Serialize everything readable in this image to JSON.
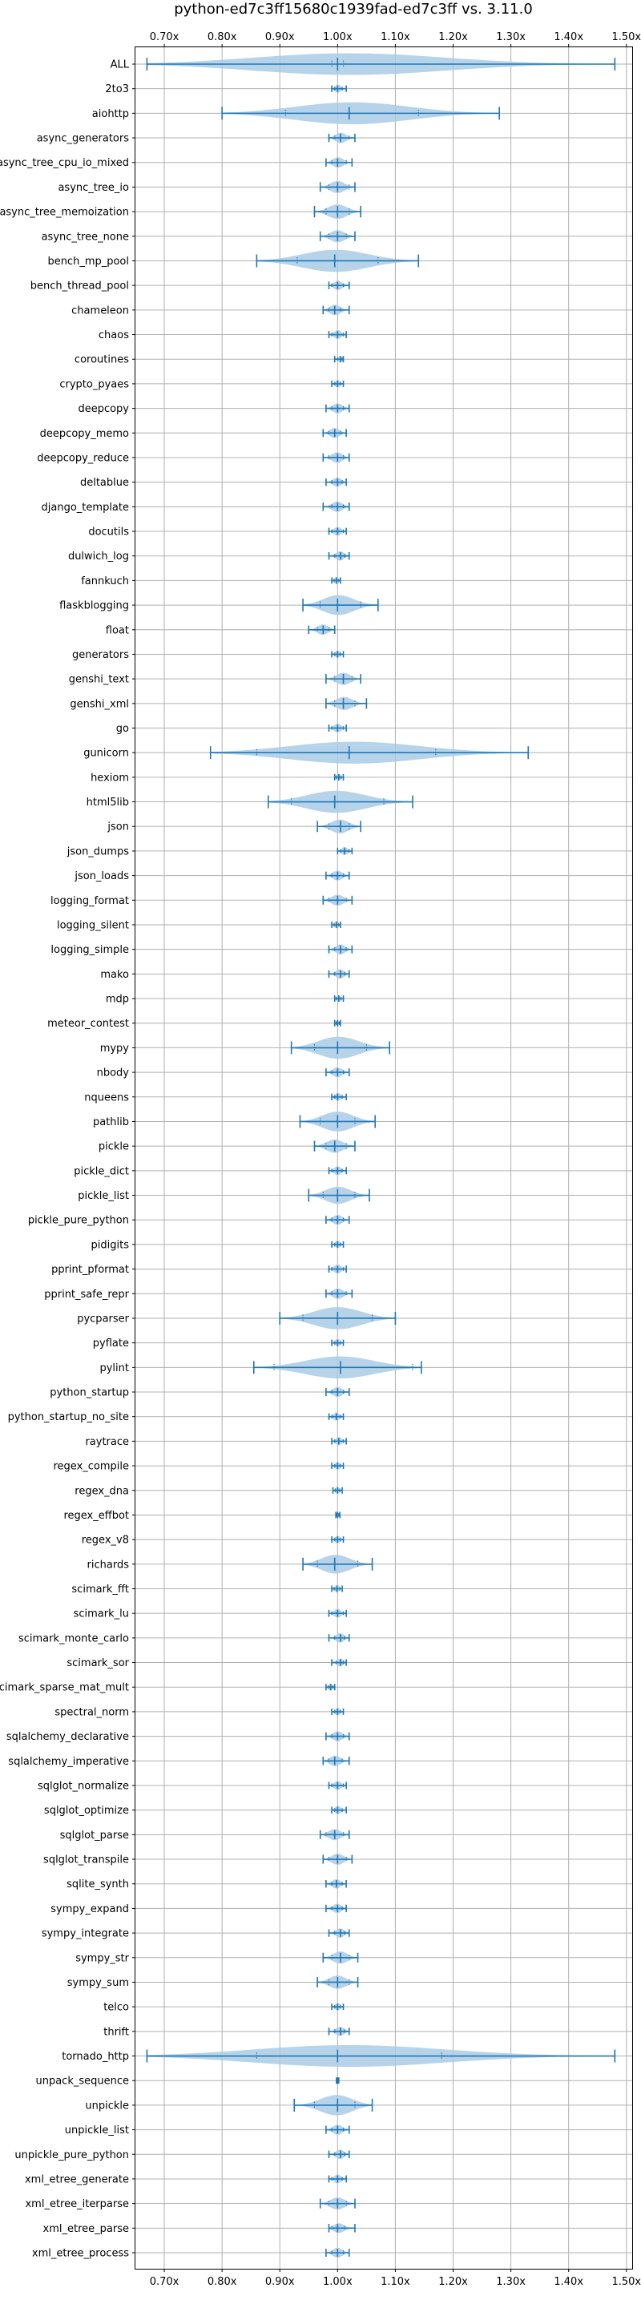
{
  "chart_data": {
    "type": "violin",
    "title": "python-ed7c3ff15680c1939fad-ed7c3ff vs. 3.11.0",
    "orientation": "horizontal",
    "xlim": [
      0.65,
      1.51
    ],
    "x_ticks": [
      0.7,
      0.8,
      0.9,
      1.0,
      1.1,
      1.2,
      1.3,
      1.4,
      1.5
    ],
    "x_tick_labels": [
      "0.70x",
      "0.80x",
      "0.90x",
      "1.00x",
      "1.10x",
      "1.20x",
      "1.30x",
      "1.40x",
      "1.50x"
    ],
    "tick_labels_top_and_bottom": true,
    "grid": true,
    "color": "#1f77b4",
    "fill_color": "#aacbe6",
    "benchmarks": [
      {
        "name": "ALL",
        "min": 0.67,
        "max": 1.48,
        "median": 1.0,
        "q1": 0.99,
        "q3": 1.01
      },
      {
        "name": "2to3",
        "min": 0.99,
        "max": 1.015,
        "median": 1.0,
        "q1": 0.995,
        "q3": 1.008
      },
      {
        "name": "aiohttp",
        "min": 0.8,
        "max": 1.28,
        "median": 1.02,
        "q1": 0.91,
        "q3": 1.14
      },
      {
        "name": "async_generators",
        "min": 0.985,
        "max": 1.03,
        "median": 1.005,
        "q1": 0.995,
        "q3": 1.02
      },
      {
        "name": "async_tree_cpu_io_mixed",
        "min": 0.98,
        "max": 1.025,
        "median": 1.0,
        "q1": 0.99,
        "q3": 1.015
      },
      {
        "name": "async_tree_io",
        "min": 0.97,
        "max": 1.03,
        "median": 1.0,
        "q1": 0.985,
        "q3": 1.02
      },
      {
        "name": "async_tree_memoization",
        "min": 0.96,
        "max": 1.04,
        "median": 1.0,
        "q1": 0.98,
        "q3": 1.02
      },
      {
        "name": "async_tree_none",
        "min": 0.97,
        "max": 1.03,
        "median": 1.0,
        "q1": 0.985,
        "q3": 1.015
      },
      {
        "name": "bench_mp_pool",
        "min": 0.86,
        "max": 1.14,
        "median": 0.995,
        "q1": 0.93,
        "q3": 1.07
      },
      {
        "name": "bench_thread_pool",
        "min": 0.985,
        "max": 1.02,
        "median": 1.0,
        "q1": 0.99,
        "q3": 1.01
      },
      {
        "name": "chameleon",
        "min": 0.975,
        "max": 1.02,
        "median": 0.995,
        "q1": 0.985,
        "q3": 1.005
      },
      {
        "name": "chaos",
        "min": 0.985,
        "max": 1.015,
        "median": 1.0,
        "q1": 0.99,
        "q3": 1.01
      },
      {
        "name": "coroutines",
        "min": 0.995,
        "max": 1.01,
        "median": 1.005,
        "q1": 1.0,
        "q3": 1.008
      },
      {
        "name": "crypto_pyaes",
        "min": 0.99,
        "max": 1.01,
        "median": 1.0,
        "q1": 0.995,
        "q3": 1.005
      },
      {
        "name": "deepcopy",
        "min": 0.98,
        "max": 1.02,
        "median": 1.0,
        "q1": 0.99,
        "q3": 1.01
      },
      {
        "name": "deepcopy_memo",
        "min": 0.975,
        "max": 1.015,
        "median": 0.995,
        "q1": 0.985,
        "q3": 1.005
      },
      {
        "name": "deepcopy_reduce",
        "min": 0.975,
        "max": 1.02,
        "median": 1.0,
        "q1": 0.985,
        "q3": 1.01
      },
      {
        "name": "deltablue",
        "min": 0.98,
        "max": 1.015,
        "median": 1.0,
        "q1": 0.99,
        "q3": 1.008
      },
      {
        "name": "django_template",
        "min": 0.975,
        "max": 1.02,
        "median": 1.0,
        "q1": 0.99,
        "q3": 1.01
      },
      {
        "name": "docutils",
        "min": 0.985,
        "max": 1.015,
        "median": 1.0,
        "q1": 0.99,
        "q3": 1.01
      },
      {
        "name": "dulwich_log",
        "min": 0.985,
        "max": 1.02,
        "median": 1.005,
        "q1": 0.995,
        "q3": 1.012
      },
      {
        "name": "fannkuch",
        "min": 0.99,
        "max": 1.005,
        "median": 0.998,
        "q1": 0.994,
        "q3": 1.002
      },
      {
        "name": "flaskblogging",
        "min": 0.94,
        "max": 1.07,
        "median": 1.0,
        "q1": 0.97,
        "q3": 1.04
      },
      {
        "name": "float",
        "min": 0.95,
        "max": 0.995,
        "median": 0.975,
        "q1": 0.965,
        "q3": 0.985
      },
      {
        "name": "generators",
        "min": 0.99,
        "max": 1.01,
        "median": 1.0,
        "q1": 0.995,
        "q3": 1.005
      },
      {
        "name": "genshi_text",
        "min": 0.98,
        "max": 1.04,
        "median": 1.01,
        "q1": 0.995,
        "q3": 1.025
      },
      {
        "name": "genshi_xml",
        "min": 0.98,
        "max": 1.05,
        "median": 1.01,
        "q1": 0.995,
        "q3": 1.03
      },
      {
        "name": "go",
        "min": 0.985,
        "max": 1.015,
        "median": 1.0,
        "q1": 0.99,
        "q3": 1.01
      },
      {
        "name": "gunicorn",
        "min": 0.78,
        "max": 1.33,
        "median": 1.02,
        "q1": 0.86,
        "q3": 1.17
      },
      {
        "name": "hexiom",
        "min": 0.995,
        "max": 1.01,
        "median": 1.002,
        "q1": 0.998,
        "q3": 1.006
      },
      {
        "name": "html5lib",
        "min": 0.88,
        "max": 1.13,
        "median": 0.995,
        "q1": 0.92,
        "q3": 1.08
      },
      {
        "name": "json",
        "min": 0.965,
        "max": 1.04,
        "median": 1.005,
        "q1": 0.985,
        "q3": 1.02
      },
      {
        "name": "json_dumps",
        "min": 1.0,
        "max": 1.025,
        "median": 1.012,
        "q1": 1.005,
        "q3": 1.02
      },
      {
        "name": "json_loads",
        "min": 0.98,
        "max": 1.02,
        "median": 1.0,
        "q1": 0.99,
        "q3": 1.01
      },
      {
        "name": "logging_format",
        "min": 0.975,
        "max": 1.025,
        "median": 1.0,
        "q1": 0.985,
        "q3": 1.015
      },
      {
        "name": "logging_silent",
        "min": 0.99,
        "max": 1.005,
        "median": 0.998,
        "q1": 0.994,
        "q3": 1.002
      },
      {
        "name": "logging_simple",
        "min": 0.985,
        "max": 1.025,
        "median": 1.005,
        "q1": 0.995,
        "q3": 1.015
      },
      {
        "name": "mako",
        "min": 0.985,
        "max": 1.02,
        "median": 1.005,
        "q1": 0.995,
        "q3": 1.012
      },
      {
        "name": "mdp",
        "min": 0.995,
        "max": 1.01,
        "median": 1.002,
        "q1": 0.998,
        "q3": 1.006
      },
      {
        "name": "meteor_contest",
        "min": 0.995,
        "max": 1.005,
        "median": 1.0,
        "q1": 0.998,
        "q3": 1.003
      },
      {
        "name": "mypy",
        "min": 0.92,
        "max": 1.09,
        "median": 1.0,
        "q1": 0.96,
        "q3": 1.05
      },
      {
        "name": "nbody",
        "min": 0.98,
        "max": 1.02,
        "median": 1.0,
        "q1": 0.99,
        "q3": 1.01
      },
      {
        "name": "nqueens",
        "min": 0.99,
        "max": 1.015,
        "median": 1.0,
        "q1": 0.995,
        "q3": 1.008
      },
      {
        "name": "pathlib",
        "min": 0.935,
        "max": 1.065,
        "median": 1.0,
        "q1": 0.97,
        "q3": 1.03
      },
      {
        "name": "pickle",
        "min": 0.96,
        "max": 1.03,
        "median": 0.995,
        "q1": 0.98,
        "q3": 1.015
      },
      {
        "name": "pickle_dict",
        "min": 0.985,
        "max": 1.015,
        "median": 1.0,
        "q1": 0.99,
        "q3": 1.008
      },
      {
        "name": "pickle_list",
        "min": 0.95,
        "max": 1.055,
        "median": 1.0,
        "q1": 0.975,
        "q3": 1.03
      },
      {
        "name": "pickle_pure_python",
        "min": 0.98,
        "max": 1.02,
        "median": 1.0,
        "q1": 0.99,
        "q3": 1.01
      },
      {
        "name": "pidigits",
        "min": 0.99,
        "max": 1.01,
        "median": 1.0,
        "q1": 0.995,
        "q3": 1.005
      },
      {
        "name": "pprint_pformat",
        "min": 0.985,
        "max": 1.015,
        "median": 1.0,
        "q1": 0.99,
        "q3": 1.01
      },
      {
        "name": "pprint_safe_repr",
        "min": 0.98,
        "max": 1.025,
        "median": 1.0,
        "q1": 0.99,
        "q3": 1.015
      },
      {
        "name": "pycparser",
        "min": 0.9,
        "max": 1.1,
        "median": 1.0,
        "q1": 0.94,
        "q3": 1.06
      },
      {
        "name": "pyflate",
        "min": 0.99,
        "max": 1.01,
        "median": 1.0,
        "q1": 0.995,
        "q3": 1.005
      },
      {
        "name": "pylint",
        "min": 0.855,
        "max": 1.145,
        "median": 1.005,
        "q1": 0.89,
        "q3": 1.13
      },
      {
        "name": "python_startup",
        "min": 0.98,
        "max": 1.02,
        "median": 1.0,
        "q1": 0.99,
        "q3": 1.01
      },
      {
        "name": "python_startup_no_site",
        "min": 0.985,
        "max": 1.01,
        "median": 0.998,
        "q1": 0.99,
        "q3": 1.005
      },
      {
        "name": "raytrace",
        "min": 0.99,
        "max": 1.015,
        "median": 1.002,
        "q1": 0.995,
        "q3": 1.01
      },
      {
        "name": "regex_compile",
        "min": 0.99,
        "max": 1.01,
        "median": 1.0,
        "q1": 0.995,
        "q3": 1.005
      },
      {
        "name": "regex_dna",
        "min": 0.992,
        "max": 1.008,
        "median": 1.0,
        "q1": 0.996,
        "q3": 1.004
      },
      {
        "name": "regex_effbot",
        "min": 0.997,
        "max": 1.004,
        "median": 1.0,
        "q1": 0.999,
        "q3": 1.002
      },
      {
        "name": "regex_v8",
        "min": 0.99,
        "max": 1.01,
        "median": 1.0,
        "q1": 0.995,
        "q3": 1.005
      },
      {
        "name": "richards",
        "min": 0.94,
        "max": 1.06,
        "median": 0.995,
        "q1": 0.965,
        "q3": 1.035
      },
      {
        "name": "scimark_fft",
        "min": 0.99,
        "max": 1.008,
        "median": 0.999,
        "q1": 0.994,
        "q3": 1.004
      },
      {
        "name": "scimark_lu",
        "min": 0.985,
        "max": 1.015,
        "median": 1.0,
        "q1": 0.99,
        "q3": 1.01
      },
      {
        "name": "scimark_monte_carlo",
        "min": 0.985,
        "max": 1.02,
        "median": 1.005,
        "q1": 0.995,
        "q3": 1.012
      },
      {
        "name": "scimark_sor",
        "min": 0.99,
        "max": 1.015,
        "median": 1.005,
        "q1": 0.998,
        "q3": 1.01
      },
      {
        "name": "scimark_sparse_mat_mult",
        "min": 0.98,
        "max": 0.995,
        "median": 0.988,
        "q1": 0.984,
        "q3": 0.992
      },
      {
        "name": "spectral_norm",
        "min": 0.99,
        "max": 1.01,
        "median": 1.0,
        "q1": 0.995,
        "q3": 1.005
      },
      {
        "name": "sqlalchemy_declarative",
        "min": 0.98,
        "max": 1.02,
        "median": 1.0,
        "q1": 0.99,
        "q3": 1.01
      },
      {
        "name": "sqlalchemy_imperative",
        "min": 0.975,
        "max": 1.02,
        "median": 0.995,
        "q1": 0.985,
        "q3": 1.008
      },
      {
        "name": "sqlglot_normalize",
        "min": 0.985,
        "max": 1.015,
        "median": 1.0,
        "q1": 0.99,
        "q3": 1.01
      },
      {
        "name": "sqlglot_optimize",
        "min": 0.99,
        "max": 1.015,
        "median": 1.0,
        "q1": 0.995,
        "q3": 1.008
      },
      {
        "name": "sqlglot_parse",
        "min": 0.97,
        "max": 1.02,
        "median": 0.995,
        "q1": 0.98,
        "q3": 1.01
      },
      {
        "name": "sqlglot_transpile",
        "min": 0.975,
        "max": 1.025,
        "median": 1.0,
        "q1": 0.985,
        "q3": 1.015
      },
      {
        "name": "sqlite_synth",
        "min": 0.98,
        "max": 1.015,
        "median": 0.998,
        "q1": 0.99,
        "q3": 1.008
      },
      {
        "name": "sympy_expand",
        "min": 0.98,
        "max": 1.015,
        "median": 1.0,
        "q1": 0.99,
        "q3": 1.008
      },
      {
        "name": "sympy_integrate",
        "min": 0.985,
        "max": 1.02,
        "median": 1.005,
        "q1": 0.995,
        "q3": 1.012
      },
      {
        "name": "sympy_str",
        "min": 0.975,
        "max": 1.035,
        "median": 1.005,
        "q1": 0.99,
        "q3": 1.02
      },
      {
        "name": "sympy_sum",
        "min": 0.965,
        "max": 1.035,
        "median": 1.0,
        "q1": 0.985,
        "q3": 1.02
      },
      {
        "name": "telco",
        "min": 0.99,
        "max": 1.01,
        "median": 1.0,
        "q1": 0.995,
        "q3": 1.005
      },
      {
        "name": "thrift",
        "min": 0.985,
        "max": 1.02,
        "median": 1.005,
        "q1": 0.995,
        "q3": 1.012
      },
      {
        "name": "tornado_http",
        "min": 0.67,
        "max": 1.48,
        "median": 1.0,
        "q1": 0.86,
        "q3": 1.18
      },
      {
        "name": "unpack_sequence",
        "min": 0.998,
        "max": 1.002,
        "median": 1.0,
        "q1": 0.999,
        "q3": 1.001
      },
      {
        "name": "unpickle",
        "min": 0.925,
        "max": 1.06,
        "median": 1.0,
        "q1": 0.96,
        "q3": 1.03
      },
      {
        "name": "unpickle_list",
        "min": 0.98,
        "max": 1.02,
        "median": 1.0,
        "q1": 0.99,
        "q3": 1.01
      },
      {
        "name": "unpickle_pure_python",
        "min": 0.985,
        "max": 1.02,
        "median": 1.005,
        "q1": 0.995,
        "q3": 1.012
      },
      {
        "name": "xml_etree_generate",
        "min": 0.985,
        "max": 1.015,
        "median": 1.0,
        "q1": 0.99,
        "q3": 1.008
      },
      {
        "name": "xml_etree_iterparse",
        "min": 0.97,
        "max": 1.03,
        "median": 1.0,
        "q1": 0.985,
        "q3": 1.015
      },
      {
        "name": "xml_etree_parse",
        "min": 0.985,
        "max": 1.03,
        "median": 1.0,
        "q1": 0.99,
        "q3": 1.012
      },
      {
        "name": "xml_etree_process",
        "min": 0.98,
        "max": 1.02,
        "median": 1.0,
        "q1": 0.99,
        "q3": 1.01
      }
    ]
  }
}
